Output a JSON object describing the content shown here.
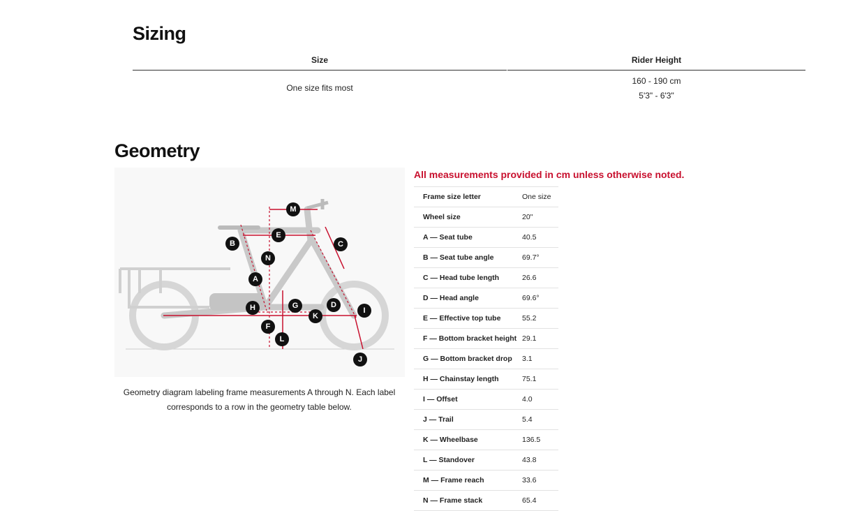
{
  "sizing": {
    "title": "Sizing",
    "headers": [
      "Size",
      "Rider Height"
    ],
    "size": "One size fits most",
    "rider_height": [
      "160 - 190 cm",
      "5'3\" - 6'3\""
    ]
  },
  "geometry": {
    "title": "Geometry",
    "note": "All measurements provided in cm unless otherwise noted.",
    "caption": "Geometry diagram labeling frame measurements A through N. Each label corresponds to a row in the geometry table below.",
    "diagram_labels": [
      "M",
      "E",
      "B",
      "C",
      "N",
      "A",
      "H",
      "G",
      "D",
      "I",
      "K",
      "F",
      "L",
      "J"
    ],
    "table": [
      [
        "Frame size letter",
        "One size"
      ],
      [
        "Wheel size",
        "20\""
      ],
      [
        "A — Seat tube",
        "40.5"
      ],
      [
        "B — Seat tube angle",
        "69.7°"
      ],
      [
        "C — Head tube length",
        "26.6"
      ],
      [
        "D — Head angle",
        "69.6°"
      ],
      [
        "E — Effective top tube",
        "55.2"
      ],
      [
        "F — Bottom bracket height",
        "29.1"
      ],
      [
        "G — Bottom bracket drop",
        "3.1"
      ],
      [
        "H — Chainstay length",
        "75.1"
      ],
      [
        "I — Offset",
        "4.0"
      ],
      [
        "J — Trail",
        "5.4"
      ],
      [
        "K — Wheelbase",
        "136.5"
      ],
      [
        "L — Standover",
        "43.8"
      ],
      [
        "M — Frame reach",
        "33.6"
      ],
      [
        "N — Frame stack",
        "65.4"
      ]
    ]
  }
}
